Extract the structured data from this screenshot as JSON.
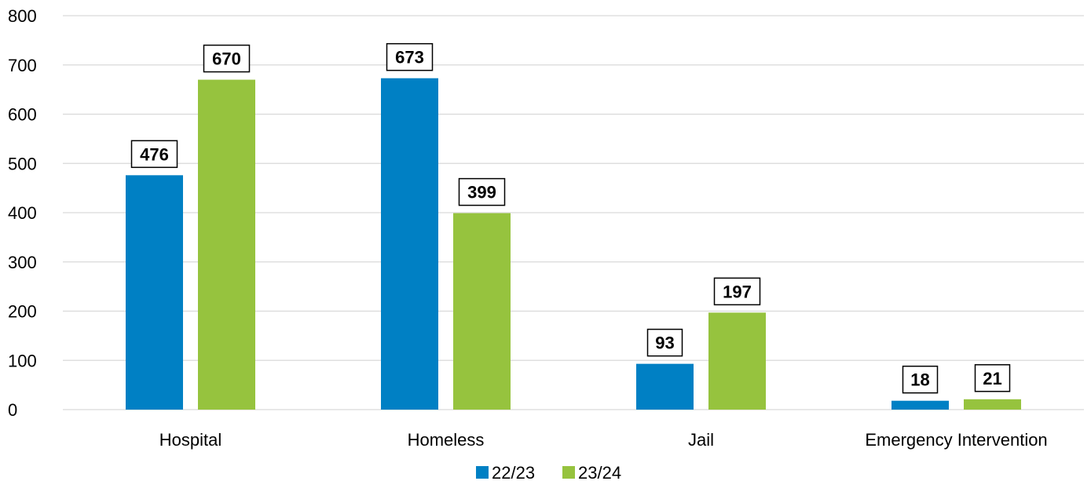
{
  "chart_data": {
    "type": "bar",
    "title": "",
    "xlabel": "",
    "ylabel": "",
    "categories": [
      "Hospital",
      "Homeless",
      "Jail",
      "Emergency Intervention"
    ],
    "series": [
      {
        "name": "22/23",
        "color": "#0080c4",
        "values": [
          476,
          673,
          93,
          18
        ]
      },
      {
        "name": "23/24",
        "color": "#96c33e",
        "values": [
          670,
          399,
          197,
          21
        ]
      }
    ],
    "ylim": [
      0,
      800
    ],
    "yticks": [
      "0",
      "100",
      "200",
      "300",
      "400",
      "500",
      "600",
      "700",
      "800"
    ],
    "grid": true,
    "legend": "bottom-center",
    "data_labels": true
  }
}
